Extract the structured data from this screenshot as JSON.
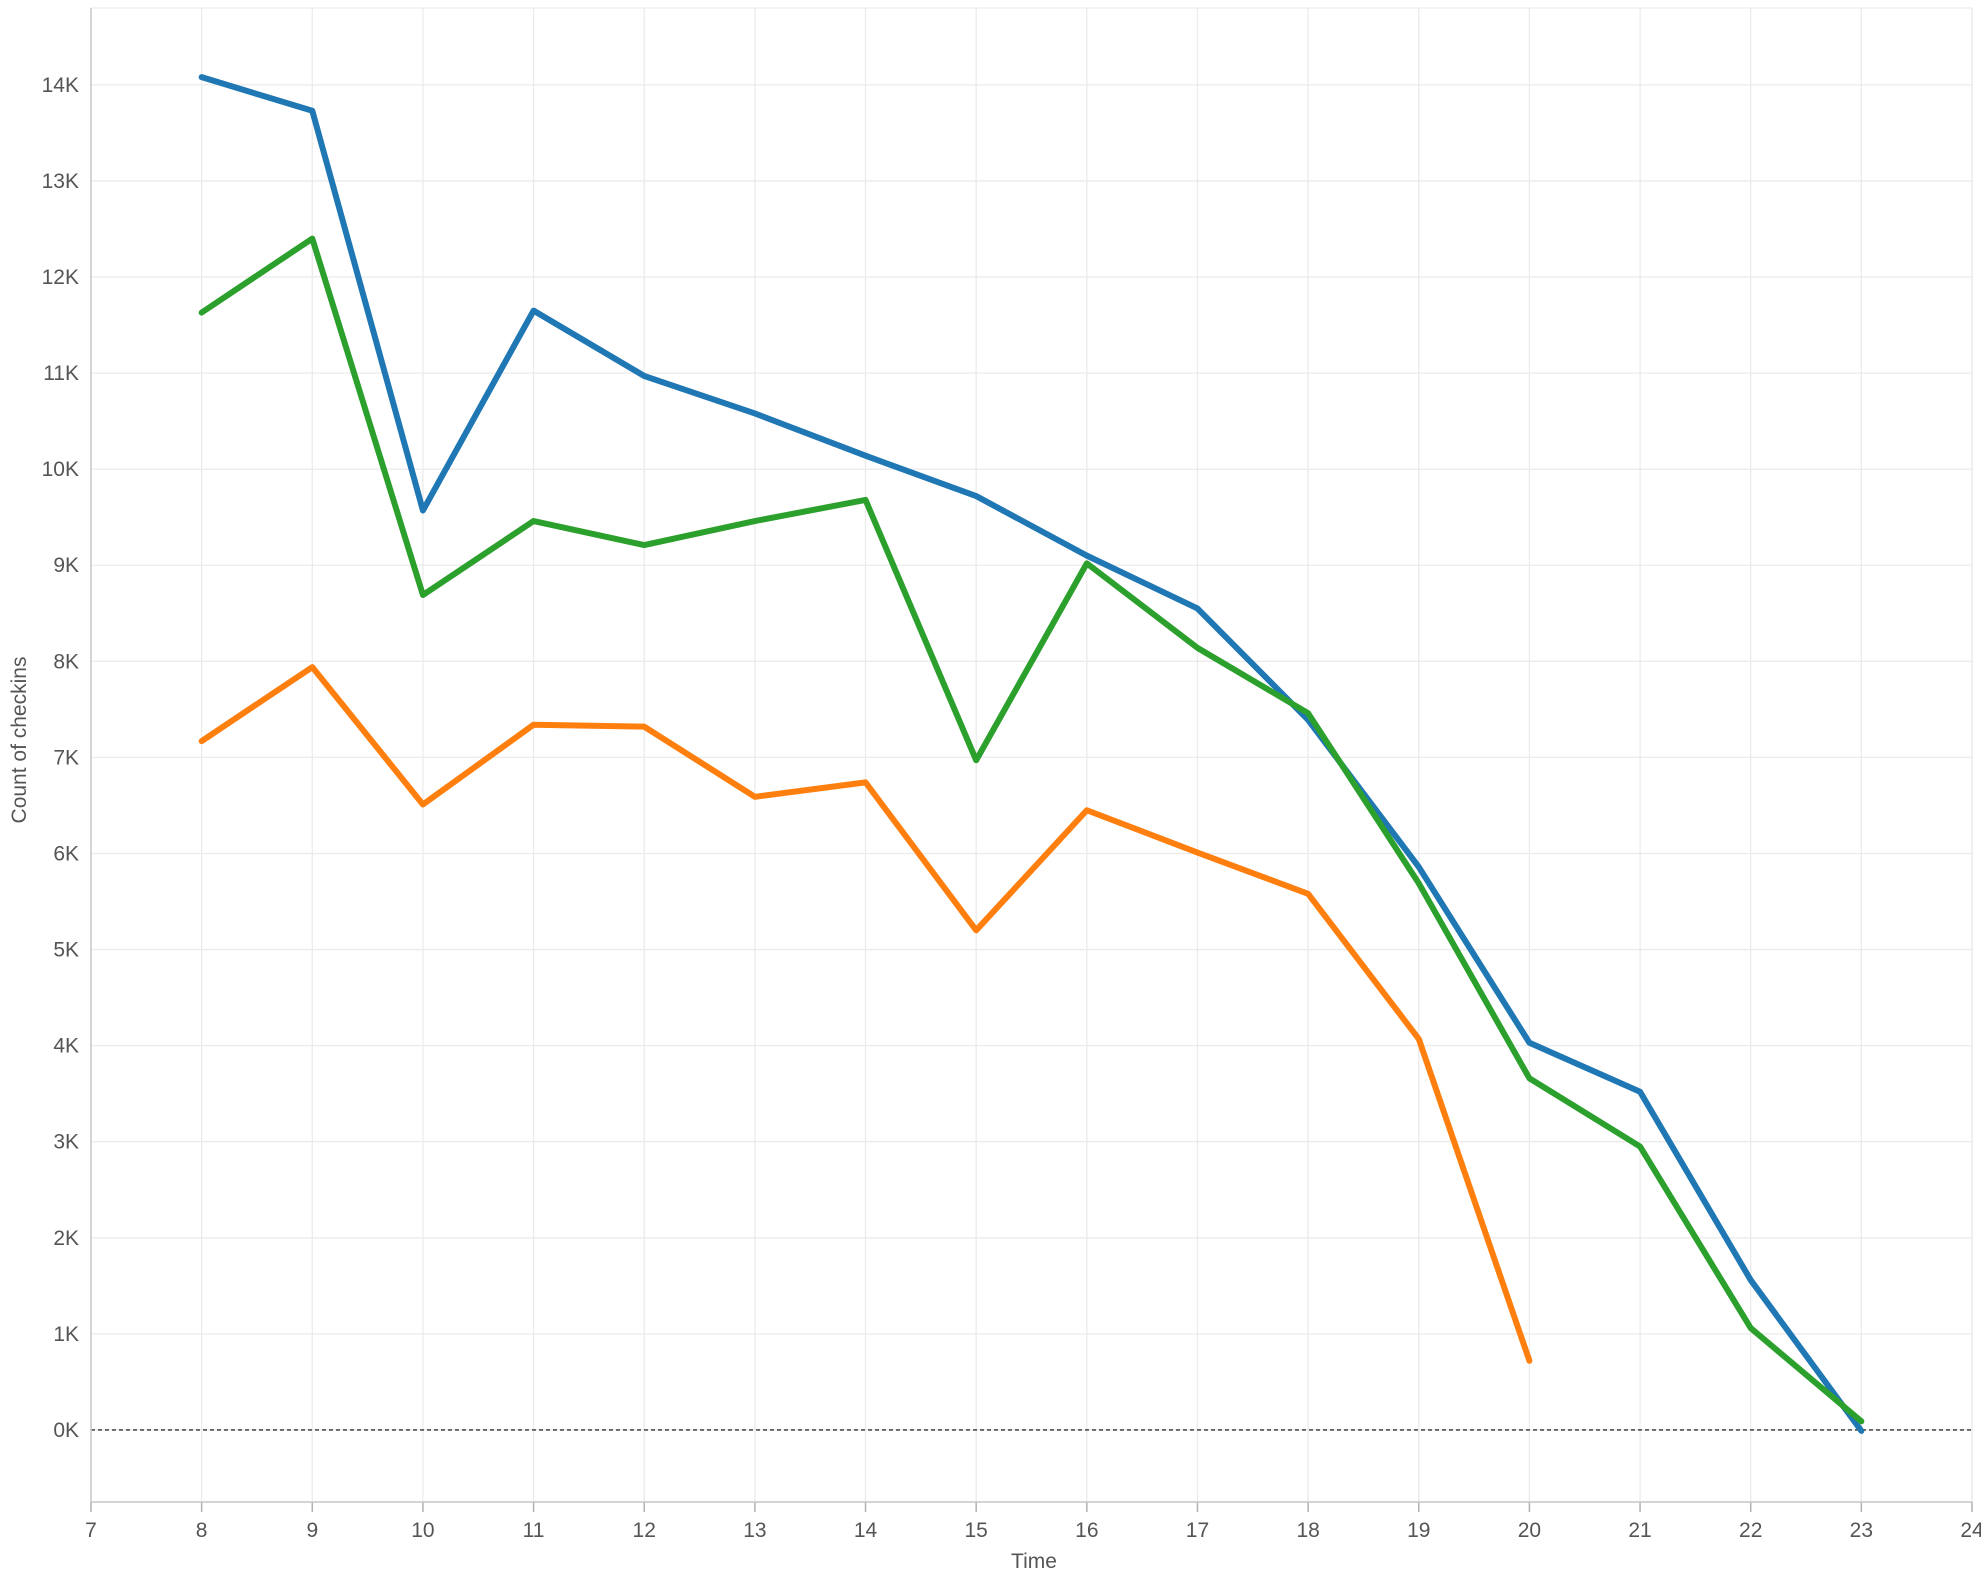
{
  "chart_data": {
    "type": "line",
    "title": "",
    "xlabel": "Time",
    "ylabel": "Count of checkins",
    "xlim": [
      7,
      24
    ],
    "ylim": [
      -750,
      14800
    ],
    "x_ticks": [
      7,
      8,
      9,
      10,
      11,
      12,
      13,
      14,
      15,
      16,
      17,
      18,
      19,
      20,
      21,
      22,
      23,
      24
    ],
    "y_ticks": [
      {
        "value": 0,
        "label": "0K"
      },
      {
        "value": 1000,
        "label": "1K"
      },
      {
        "value": 2000,
        "label": "2K"
      },
      {
        "value": 3000,
        "label": "3K"
      },
      {
        "value": 4000,
        "label": "4K"
      },
      {
        "value": 5000,
        "label": "5K"
      },
      {
        "value": 6000,
        "label": "6K"
      },
      {
        "value": 7000,
        "label": "7K"
      },
      {
        "value": 8000,
        "label": "8K"
      },
      {
        "value": 9000,
        "label": "9K"
      },
      {
        "value": 10000,
        "label": "10K"
      },
      {
        "value": 11000,
        "label": "11K"
      },
      {
        "value": 12000,
        "label": "12K"
      },
      {
        "value": 13000,
        "label": "13K"
      },
      {
        "value": 14000,
        "label": "14K"
      }
    ],
    "grid": true,
    "legend": "none",
    "reference_line": {
      "y": 0,
      "style": "dashed"
    },
    "series": [
      {
        "color": "#1f77b4",
        "x": [
          8,
          9,
          10,
          11,
          12,
          13,
          14,
          15,
          16,
          17,
          18,
          19,
          20,
          21,
          22,
          23
        ],
        "values": [
          14080,
          13730,
          9570,
          11650,
          10970,
          10580,
          10140,
          9720,
          9100,
          8550,
          7390,
          5860,
          4030,
          3520,
          1560,
          -10
        ]
      },
      {
        "color": "#2ca02c",
        "x": [
          8,
          9,
          10,
          11,
          12,
          13,
          14,
          15,
          16,
          17,
          18,
          19,
          20,
          21,
          22,
          23
        ],
        "values": [
          11630,
          12400,
          8690,
          9460,
          9210,
          9460,
          9680,
          6970,
          9020,
          8140,
          7460,
          5690,
          3660,
          2950,
          1060,
          90
        ]
      },
      {
        "color": "#ff7f0e",
        "x": [
          8,
          9,
          10,
          11,
          12,
          13,
          14,
          15,
          16,
          17,
          18,
          19,
          20
        ],
        "values": [
          7170,
          7940,
          6510,
          7340,
          7320,
          6590,
          6740,
          5200,
          6450,
          6010,
          5580,
          4070,
          720
        ]
      }
    ]
  }
}
